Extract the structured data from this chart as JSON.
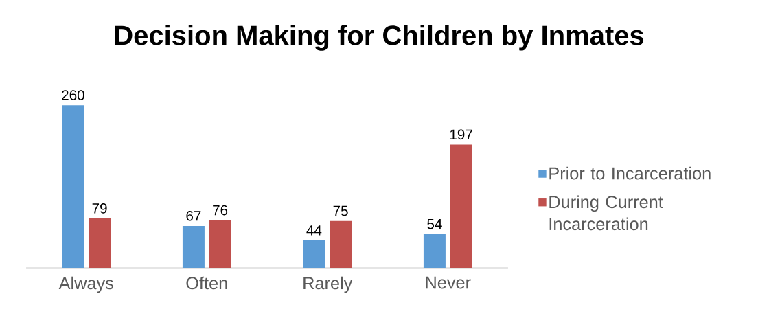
{
  "chart_data": {
    "type": "bar",
    "title": "Decision Making for Children by Inmates",
    "categories": [
      "Always",
      "Often",
      "Rarely",
      "Never"
    ],
    "series": [
      {
        "name": "Prior to Incarceration",
        "color": "#5b9bd5",
        "values": [
          260,
          67,
          44,
          54
        ]
      },
      {
        "name": "During Current Incarceration",
        "color": "#c0504d",
        "values": [
          79,
          76,
          75,
          197
        ]
      }
    ],
    "data_labels": true,
    "legend": "right"
  }
}
